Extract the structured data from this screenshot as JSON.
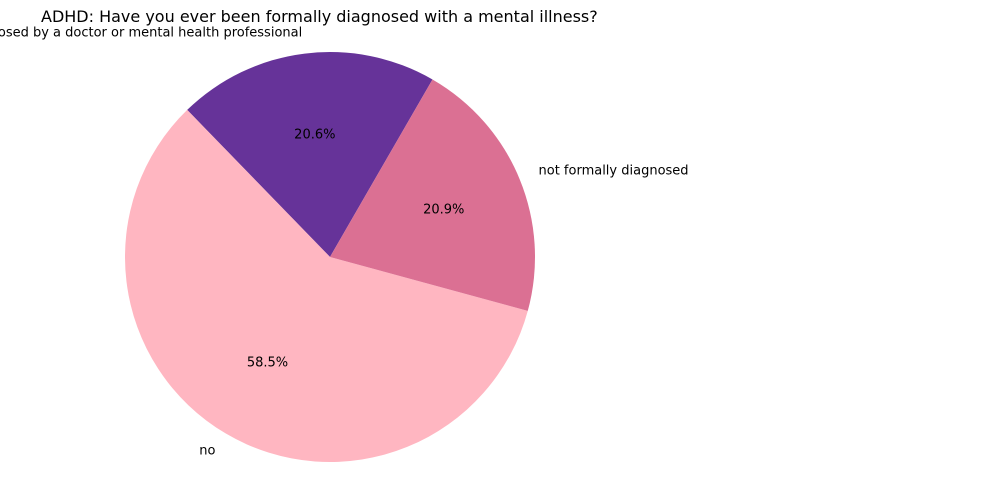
{
  "chart_data": {
    "type": "pie",
    "title": "ADHD: Have you ever been formally diagnosed with a mental illness?",
    "start_angle_deg": 60,
    "direction": "counterclockwise",
    "slices": [
      {
        "label": "yes, formally diagnosed by a doctor or mental health professional",
        "value": 20.6,
        "pct_label": "20.6%",
        "color": "#663399"
      },
      {
        "label": "no",
        "value": 58.5,
        "pct_label": "58.5%",
        "color": "#ffb6c1"
      },
      {
        "label": "not formally diagnosed",
        "value": 20.9,
        "pct_label": "20.9%",
        "color": "#db7093"
      }
    ]
  }
}
